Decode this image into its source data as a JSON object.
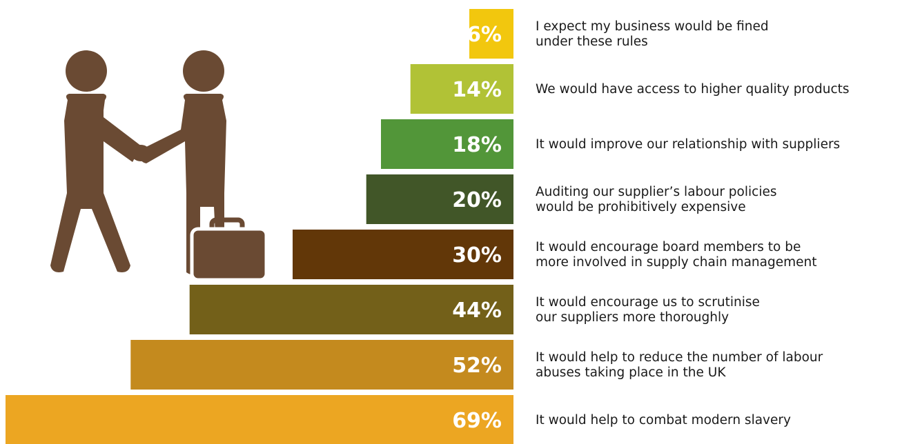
{
  "chart_data": {
    "type": "bar",
    "orientation": "horizontal",
    "categories": [
      "I expect my business would be fined\nunder these rules",
      "We would have access to higher quality products",
      "It would improve our relationship with suppliers",
      "Auditing our supplier’s labour policies\nwould be prohibitively expensive",
      "It would encourage board members to be\nmore involved in supply chain management",
      "It would encourage us to scrutinise\nour suppliers more thoroughly",
      "It would help to reduce the number of labour\nabuses taking place in the UK",
      "It would help to combat modern slavery"
    ],
    "values": [
      6,
      14,
      18,
      20,
      30,
      44,
      52,
      69
    ],
    "value_labels": [
      "6%",
      "14%",
      "18%",
      "20%",
      "30%",
      "44%",
      "52%",
      "69%"
    ],
    "bar_colors": [
      "#F2C70E",
      "#B1C236",
      "#529639",
      "#415628",
      "#623708",
      "#736019",
      "#C48A1E",
      "#ECA622"
    ],
    "unit": "%",
    "xlim": [
      0,
      69
    ],
    "grid": false,
    "legend": "none"
  },
  "illustration": {
    "icon": "handshake-businessmen-icon",
    "accessory": "briefcase-icon",
    "color": "#6A4A33"
  }
}
